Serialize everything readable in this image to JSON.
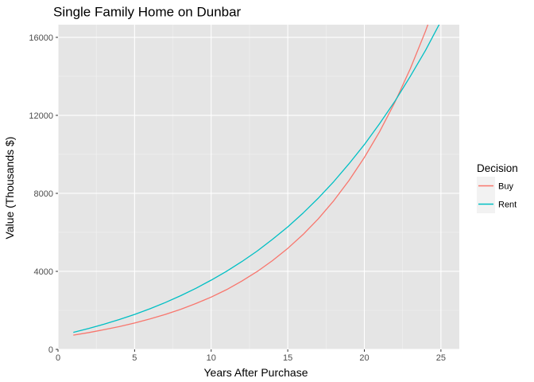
{
  "chart_data": {
    "type": "line",
    "title": "Single Family Home on Dunbar",
    "xlabel": "Years After Purchase",
    "ylabel": "Value (Thousands $)",
    "xlim": [
      0,
      26.2
    ],
    "ylim": [
      0,
      16650
    ],
    "x_ticks": [
      0,
      5,
      10,
      15,
      20,
      25
    ],
    "y_ticks": [
      0,
      4000,
      8000,
      12000,
      16000
    ],
    "grid": true,
    "legend": {
      "title": "Decision",
      "position": "right"
    },
    "series": [
      {
        "name": "Buy",
        "color": "#F8766D",
        "x": [
          1,
          2,
          3,
          4,
          5,
          6,
          7,
          8,
          9,
          10,
          11,
          12,
          13,
          14,
          15,
          16,
          17,
          18,
          19,
          20,
          21,
          22,
          23,
          24,
          25
        ],
        "y": [
          730,
          860,
          1010,
          1170,
          1350,
          1560,
          1790,
          2050,
          2350,
          2680,
          3060,
          3500,
          3990,
          4550,
          5180,
          5890,
          6700,
          7620,
          8660,
          9840,
          11170,
          12680,
          14390,
          16330,
          18520
        ]
      },
      {
        "name": "Rent",
        "color": "#00BFC4",
        "x": [
          1,
          2,
          3,
          4,
          5,
          6,
          7,
          8,
          9,
          10,
          11,
          12,
          13,
          14,
          15,
          16,
          17,
          18,
          19,
          20,
          21,
          22,
          23,
          24,
          25
        ],
        "y": [
          870,
          1070,
          1290,
          1530,
          1790,
          2080,
          2400,
          2750,
          3130,
          3550,
          4000,
          4500,
          5040,
          5640,
          6280,
          6990,
          7760,
          8600,
          9520,
          10500,
          11580,
          12730,
          14000,
          15340,
          16830
        ]
      }
    ]
  }
}
